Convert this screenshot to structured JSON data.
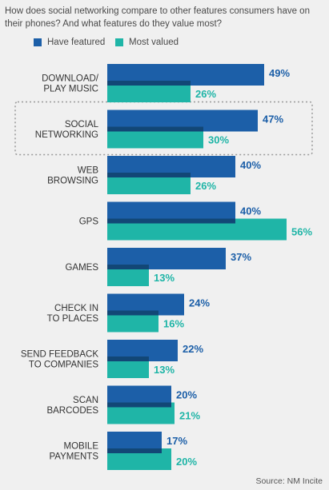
{
  "question": "How does social networking compare to other features consumers have on their phones? And what features do they value most?",
  "source": "Source: NM Incite",
  "colors": {
    "featured": "#1c5fa8",
    "valued": "#1fb5a7",
    "overlap": "#124776",
    "highlight_border": "#9a9a9a"
  },
  "chart_data": {
    "type": "bar",
    "orientation": "horizontal",
    "categories": [
      [
        "DOWNLOAD/",
        "PLAY MUSIC"
      ],
      [
        "SOCIAL",
        "NETWORKING"
      ],
      [
        "WEB",
        "BROWSING"
      ],
      [
        "GPS"
      ],
      [
        "GAMES"
      ],
      [
        "CHECK IN",
        "TO PLACES"
      ],
      [
        "SEND FEEDBACK",
        "TO COMPANIES"
      ],
      [
        "SCAN",
        "BARCODES"
      ],
      [
        "MOBILE",
        "PAYMENTS"
      ]
    ],
    "series": [
      {
        "name": "Have featured",
        "values": [
          49,
          47,
          40,
          40,
          37,
          24,
          22,
          20,
          17
        ],
        "labels": [
          "49%",
          "47%",
          "40%",
          "40%",
          "37%",
          "24%",
          "22%",
          "20%",
          "17%"
        ]
      },
      {
        "name": "Most valued",
        "values": [
          26,
          30,
          26,
          56,
          13,
          16,
          13,
          21,
          20
        ],
        "labels": [
          "26%",
          "30%",
          "26%",
          "56%",
          "13%",
          "16%",
          "13%",
          "21%",
          "20%"
        ]
      }
    ],
    "highlighted_category_index": 1,
    "xlim": [
      0,
      100
    ],
    "legend": "top-left"
  }
}
